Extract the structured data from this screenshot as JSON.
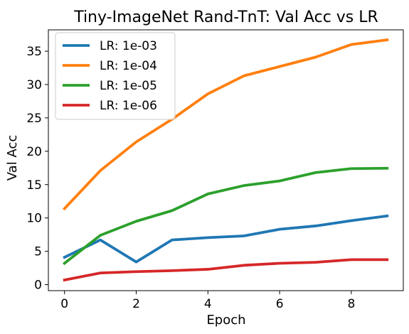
{
  "chart_data": {
    "type": "line",
    "title": "Tiny-ImageNet Rand-TnT: Val Acc vs LR",
    "xlabel": "Epoch",
    "ylabel": "Val Acc",
    "x": [
      0,
      1,
      2,
      3,
      4,
      5,
      6,
      7,
      8,
      9
    ],
    "xlim": [
      -0.45,
      9.45
    ],
    "ylim": [
      -0.9,
      38.2
    ],
    "xticks": [
      0,
      2,
      4,
      6,
      8
    ],
    "yticks": [
      0,
      5,
      10,
      15,
      20,
      25,
      30,
      35
    ],
    "grid": false,
    "legend_position": "top-left",
    "series": [
      {
        "name": "LR: 1e-03",
        "color": "#1f77b4",
        "values": [
          4.1,
          6.7,
          3.4,
          6.7,
          7.05,
          7.3,
          8.3,
          8.8,
          9.6,
          10.3
        ]
      },
      {
        "name": "LR: 1e-04",
        "color": "#ff7f0e",
        "values": [
          11.4,
          17.1,
          21.4,
          24.8,
          28.6,
          31.3,
          32.7,
          34.1,
          36.0,
          36.7
        ]
      },
      {
        "name": "LR: 1e-05",
        "color": "#2ca02c",
        "values": [
          3.2,
          7.4,
          9.5,
          11.1,
          13.6,
          14.85,
          15.55,
          16.8,
          17.4,
          17.45
        ]
      },
      {
        "name": "LR: 1e-06",
        "color": "#d62728",
        "values": [
          0.7,
          1.75,
          1.95,
          2.1,
          2.3,
          2.9,
          3.2,
          3.35,
          3.75,
          3.75
        ]
      }
    ]
  }
}
